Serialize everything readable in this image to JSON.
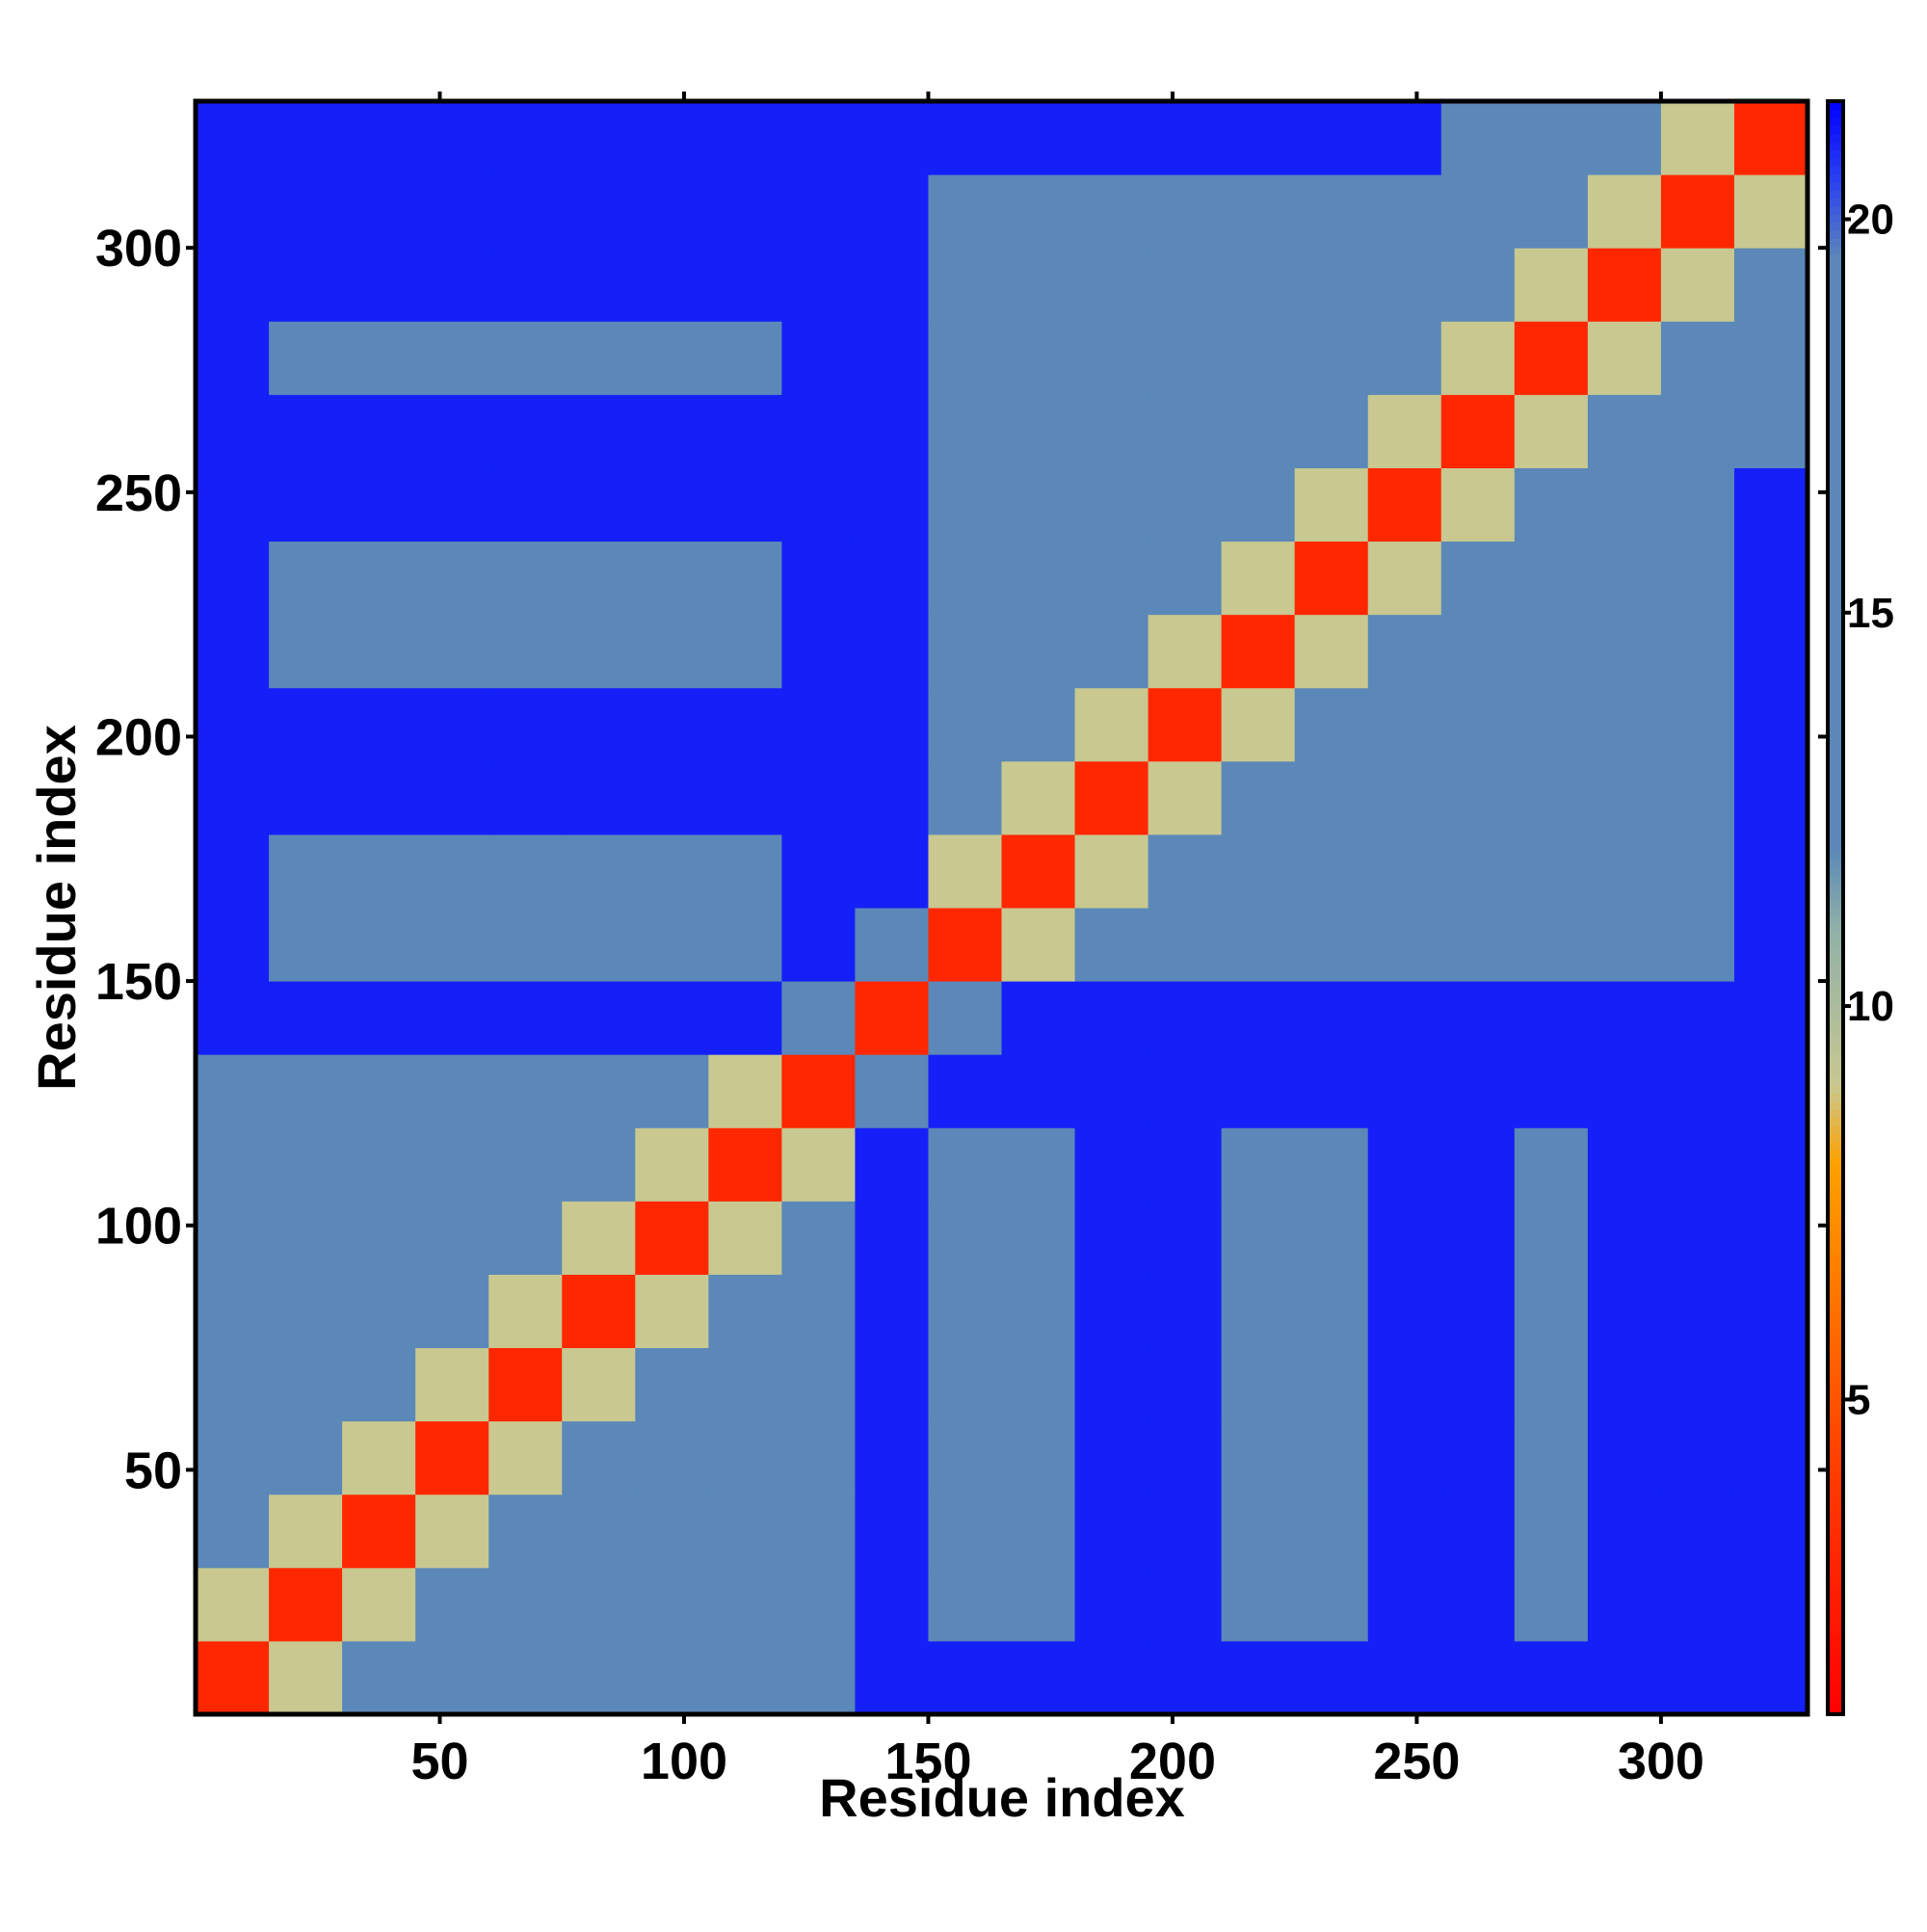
{
  "chart_data": {
    "type": "heatmap",
    "xlabel": "Residue index",
    "ylabel": "Residue index",
    "xlim": [
      0,
      330
    ],
    "ylim": [
      0,
      330
    ],
    "xticks": [
      50,
      100,
      150,
      200,
      250,
      300
    ],
    "yticks": [
      50,
      100,
      150,
      200,
      250,
      300
    ],
    "clim": [
      1,
      21.5
    ],
    "cticks": [
      5,
      10,
      15,
      20
    ],
    "colorscale": [
      [
        1,
        "#ff0000"
      ],
      [
        4,
        "#ff3a00"
      ],
      [
        8,
        "#ffa000"
      ],
      [
        9,
        "#c8c890"
      ],
      [
        11,
        "#8fb0a8"
      ],
      [
        12,
        "#5b88b8"
      ],
      [
        19.5,
        "#5b88b8"
      ],
      [
        20.5,
        "#2a40f0"
      ],
      [
        21.5,
        "#0000ff"
      ]
    ],
    "z": [
      [
        3,
        9,
        13,
        15,
        15,
        15,
        15,
        15,
        16,
        21,
        21,
        21,
        21,
        21,
        21,
        21,
        21,
        21,
        21,
        21,
        21,
        21
      ],
      [
        9,
        3,
        9,
        13,
        15,
        14,
        15,
        15,
        16,
        21,
        19,
        19,
        21,
        21,
        19,
        19,
        21,
        21,
        19,
        21,
        21,
        21
      ],
      [
        13,
        9,
        3,
        9,
        13,
        15,
        14,
        15,
        16,
        21,
        19,
        19,
        21,
        21,
        19,
        19,
        21,
        21,
        19,
        21,
        21,
        21
      ],
      [
        15,
        13,
        9,
        3,
        9,
        13,
        15,
        14,
        16,
        21,
        19,
        19,
        21,
        21,
        19,
        19,
        21,
        21,
        19,
        21,
        21,
        21
      ],
      [
        15,
        15,
        13,
        9,
        3,
        9,
        13,
        15,
        16,
        21,
        19,
        19,
        21,
        21,
        19,
        19,
        21,
        21,
        19,
        21,
        21,
        21
      ],
      [
        15,
        14,
        15,
        13,
        9,
        3,
        9,
        13,
        15,
        21,
        19,
        19,
        21,
        21,
        19,
        19,
        21,
        21,
        19,
        21,
        21,
        21
      ],
      [
        15,
        15,
        14,
        15,
        13,
        9,
        3,
        9,
        13,
        21,
        19,
        19,
        21,
        21,
        19,
        19,
        21,
        21,
        19,
        21,
        21,
        21
      ],
      [
        15,
        15,
        15,
        14,
        15,
        13,
        9,
        3,
        9,
        21,
        19,
        19,
        21,
        21,
        19,
        19,
        21,
        21,
        19,
        21,
        21,
        21
      ],
      [
        16,
        16,
        16,
        16,
        16,
        15,
        13,
        9,
        3,
        12,
        21,
        21,
        21,
        21,
        21,
        21,
        21,
        21,
        21,
        21,
        21,
        21
      ],
      [
        21,
        21,
        21,
        21,
        21,
        21,
        21,
        21,
        12,
        3,
        12,
        21,
        21,
        21,
        21,
        21,
        21,
        21,
        21,
        21,
        21,
        21
      ],
      [
        21,
        19,
        19,
        19,
        19,
        19,
        19,
        19,
        21,
        12,
        3,
        9,
        13,
        15,
        15,
        15,
        15,
        15,
        15,
        15,
        16,
        21
      ],
      [
        21,
        19,
        19,
        19,
        19,
        19,
        19,
        19,
        21,
        21,
        9,
        3,
        9,
        13,
        15,
        14,
        15,
        15,
        15,
        15,
        16,
        21
      ],
      [
        21,
        21,
        21,
        21,
        21,
        21,
        21,
        21,
        21,
        21,
        13,
        9,
        3,
        9,
        13,
        15,
        14,
        15,
        15,
        15,
        16,
        21
      ],
      [
        21,
        21,
        21,
        21,
        21,
        21,
        21,
        21,
        21,
        21,
        15,
        13,
        9,
        3,
        9,
        13,
        15,
        14,
        15,
        15,
        16,
        21
      ],
      [
        21,
        19,
        19,
        19,
        19,
        19,
        19,
        19,
        21,
        21,
        15,
        15,
        13,
        9,
        3,
        9,
        13,
        15,
        14,
        15,
        16,
        21
      ],
      [
        21,
        19,
        19,
        19,
        19,
        19,
        19,
        19,
        21,
        21,
        15,
        14,
        15,
        13,
        9,
        3,
        9,
        13,
        15,
        14,
        16,
        21
      ],
      [
        21,
        21,
        21,
        21,
        21,
        21,
        21,
        21,
        21,
        21,
        15,
        15,
        14,
        15,
        13,
        9,
        3,
        9,
        13,
        15,
        16,
        21
      ],
      [
        21,
        21,
        21,
        21,
        21,
        21,
        21,
        21,
        21,
        21,
        15,
        15,
        15,
        14,
        15,
        13,
        9,
        3,
        9,
        13,
        15,
        14
      ],
      [
        21,
        19,
        19,
        19,
        19,
        19,
        19,
        19,
        21,
        21,
        15,
        15,
        15,
        15,
        14,
        15,
        13,
        9,
        3,
        9,
        13,
        14
      ],
      [
        21,
        21,
        21,
        21,
        21,
        21,
        21,
        21,
        21,
        21,
        15,
        15,
        15,
        15,
        15,
        14,
        15,
        13,
        9,
        3,
        9,
        14
      ],
      [
        21,
        21,
        21,
        21,
        21,
        21,
        21,
        21,
        21,
        21,
        16,
        16,
        16,
        16,
        16,
        16,
        16,
        15,
        13,
        9,
        3,
        9
      ],
      [
        21,
        21,
        21,
        21,
        21,
        21,
        21,
        21,
        21,
        21,
        21,
        21,
        21,
        21,
        21,
        21,
        21,
        14,
        14,
        14,
        9,
        3
      ]
    ]
  }
}
